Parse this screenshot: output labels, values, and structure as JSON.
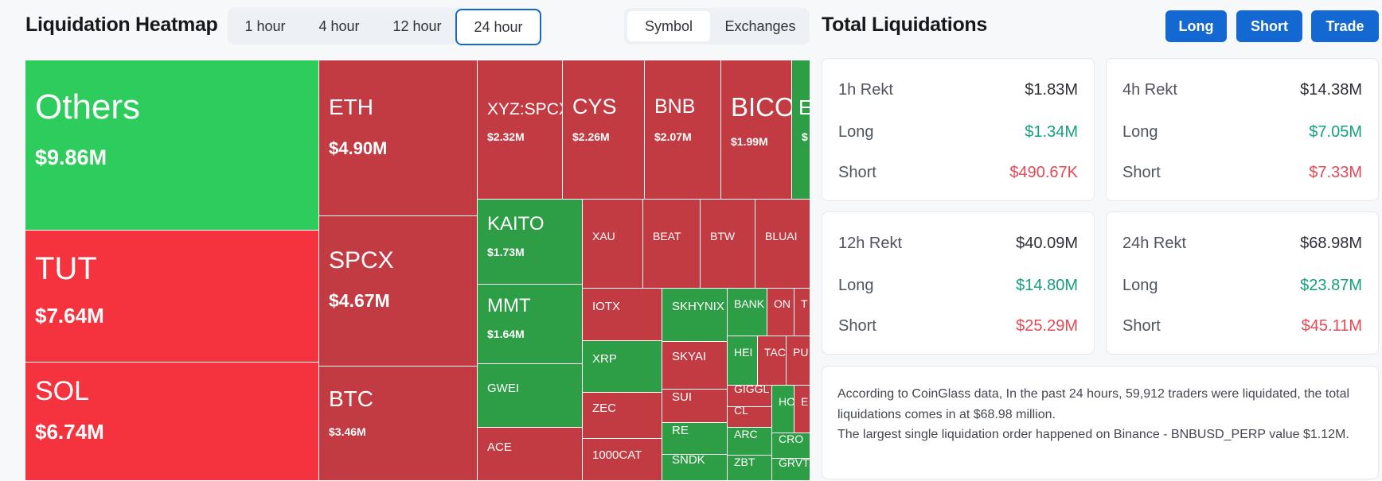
{
  "heatmap": {
    "title": "Liquidation Heatmap",
    "timeframes": [
      "1 hour",
      "4 hour",
      "12 hour",
      "24 hour"
    ],
    "active_timeframe": "24 hour",
    "view_options": [
      "Symbol",
      "Exchanges"
    ],
    "active_view": "Symbol",
    "colors": {
      "green": "#2ecc5c",
      "red": "#f5333f",
      "dark_green": "#2e9e46",
      "dark_red": "#c23b43"
    },
    "tiles": [
      {
        "symbol": "Others",
        "value": "$9.86M"
      },
      {
        "symbol": "TUT",
        "value": "$7.64M"
      },
      {
        "symbol": "SOL",
        "value": "$6.74M"
      },
      {
        "symbol": "ETH",
        "value": "$4.90M"
      },
      {
        "symbol": "SPCX",
        "value": "$4.67M"
      },
      {
        "symbol": "BTC",
        "value": "$3.46M"
      },
      {
        "symbol": "XYZ:SPCX",
        "value": "$2.32M"
      },
      {
        "symbol": "CYS",
        "value": "$2.26M"
      },
      {
        "symbol": "BNB",
        "value": "$2.07M"
      },
      {
        "symbol": "BICO",
        "value": "$1.99M"
      },
      {
        "symbol": "E",
        "value": "$"
      },
      {
        "symbol": "KAITO",
        "value": "$1.73M"
      },
      {
        "symbol": "MMT",
        "value": "$1.64M"
      },
      {
        "symbol": "GWEI",
        "value": ""
      },
      {
        "symbol": "ACE",
        "value": ""
      },
      {
        "symbol": "XAU",
        "value": ""
      },
      {
        "symbol": "BEAT",
        "value": ""
      },
      {
        "symbol": "BTW",
        "value": ""
      },
      {
        "symbol": "BLUAI",
        "value": ""
      },
      {
        "symbol": "IOTX",
        "value": ""
      },
      {
        "symbol": "XRP",
        "value": ""
      },
      {
        "symbol": "ZEC",
        "value": ""
      },
      {
        "symbol": "1000CAT",
        "value": ""
      },
      {
        "symbol": "SKHYNIX",
        "value": ""
      },
      {
        "symbol": "SKYAI",
        "value": ""
      },
      {
        "symbol": "SUI",
        "value": ""
      },
      {
        "symbol": "RE",
        "value": ""
      },
      {
        "symbol": "SNDK",
        "value": ""
      },
      {
        "symbol": "BANK",
        "value": ""
      },
      {
        "symbol": "ON",
        "value": ""
      },
      {
        "symbol": "T",
        "value": ""
      },
      {
        "symbol": "HEI",
        "value": ""
      },
      {
        "symbol": "TAC",
        "value": ""
      },
      {
        "symbol": "PU",
        "value": ""
      },
      {
        "symbol": "GIGGL",
        "value": ""
      },
      {
        "symbol": "CL",
        "value": ""
      },
      {
        "symbol": "ARC",
        "value": ""
      },
      {
        "symbol": "ZBT",
        "value": ""
      },
      {
        "symbol": "HO",
        "value": ""
      },
      {
        "symbol": "E",
        "value": ""
      },
      {
        "symbol": "CRO",
        "value": ""
      },
      {
        "symbol": "GRVT",
        "value": ""
      }
    ]
  },
  "totals": {
    "title": "Total Liquidations",
    "buttons": {
      "long": "Long",
      "short": "Short",
      "trade": "Trade"
    },
    "cards": [
      {
        "label": "1h Rekt",
        "total": "$1.83M",
        "long_label": "Long",
        "long": "$1.34M",
        "short_label": "Short",
        "short": "$490.67K"
      },
      {
        "label": "4h Rekt",
        "total": "$14.38M",
        "long_label": "Long",
        "long": "$7.05M",
        "short_label": "Short",
        "short": "$7.33M"
      },
      {
        "label": "12h Rekt",
        "total": "$40.09M",
        "long_label": "Long",
        "long": "$14.80M",
        "short_label": "Short",
        "short": "$25.29M"
      },
      {
        "label": "24h Rekt",
        "total": "$68.98M",
        "long_label": "Long",
        "long": "$23.87M",
        "short_label": "Short",
        "short": "$45.11M"
      }
    ],
    "summary_line1": "According to CoinGlass data, In the past 24 hours, 59,912 traders were liquidated, the total liquidations comes in at $68.98 million.",
    "summary_line2": "The largest single liquidation order happened on Binance - BNBUSD_PERP value $1.12M.",
    "colors": {
      "button": "#1468d2",
      "long": "#14a080",
      "short": "#e24a57"
    }
  }
}
